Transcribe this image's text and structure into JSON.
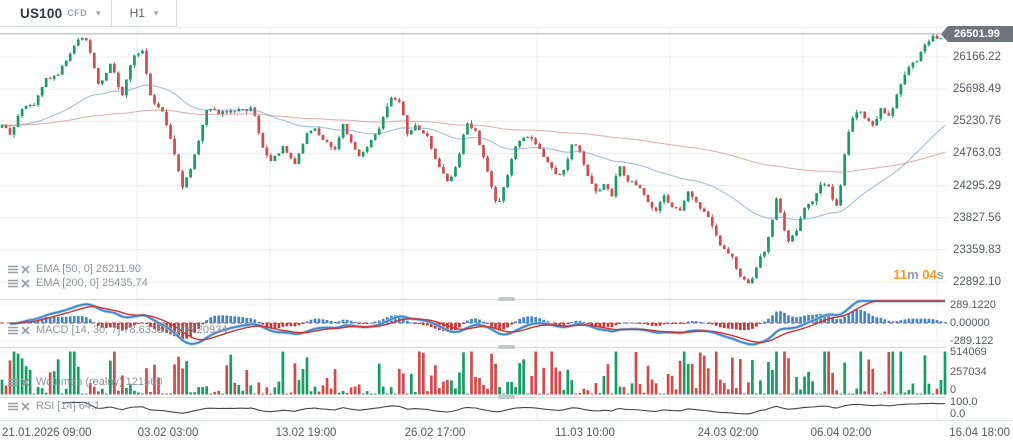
{
  "header": {
    "symbol": "US100",
    "instrument_type": "CFD",
    "timeframe": "H1"
  },
  "price_axis": {
    "current_price": "26501.99",
    "ticks": [
      "26166.22",
      "25698.49",
      "25230.76",
      "24763.03",
      "24295.29",
      "23827.56",
      "23359.83",
      "22892.10"
    ]
  },
  "countdown": {
    "minutes": "11",
    "minutes_unit": "m",
    "seconds": "04",
    "seconds_unit": "s"
  },
  "indicators": {
    "ema1": {
      "label": "EMA [50, 0]",
      "value": "26211.90"
    },
    "ema2": {
      "label": "EMA [200, 0]",
      "value": "25435.74"
    },
    "macd": {
      "label": "MACD [14, 30, 7]",
      "value": "78.63357, 106.20934",
      "axis": [
        "289.1220",
        "0.00000",
        "-289.122"
      ]
    },
    "volumes": {
      "label": "Wolumen (realny)",
      "value": "121560",
      "axis": [
        "514069",
        "257034",
        "0"
      ]
    },
    "rsi": {
      "label": "RSI [14]",
      "value": "64.1",
      "axis": [
        "100.0",
        "0.0"
      ]
    }
  },
  "time_axis": [
    "21.01.2026 09:00",
    "03.02 03:00",
    "13.02 19:00",
    "26.02 17:00",
    "11.03 10:00",
    "24.03 02:00",
    "06.04 02:00",
    "16.04 18:00"
  ],
  "chart_data": {
    "type": "candlestick",
    "symbol": "US100",
    "timeframe": "H1",
    "x_range": [
      "21.01.2026 09:00",
      "16.04 18:00"
    ],
    "y_ticks": [
      26166.22,
      25698.49,
      25230.76,
      24763.03,
      24295.29,
      23827.56,
      23359.83,
      22892.1
    ],
    "current_price": 26501.99,
    "panels": [
      "price+EMA50+EMA200",
      "MACD(14,30,7)",
      "volume",
      "RSI(14)"
    ],
    "macd_axis": [
      289.122,
      0.0,
      -289.122
    ],
    "volume_axis": [
      514069,
      257034,
      0
    ],
    "rsi_axis": [
      100.0,
      0.0
    ],
    "price_path": [
      [
        0.005,
        25150
      ],
      [
        0.011,
        25020
      ],
      [
        0.021,
        25400
      ],
      [
        0.037,
        25480
      ],
      [
        0.048,
        25830
      ],
      [
        0.061,
        25900
      ],
      [
        0.074,
        26230
      ],
      [
        0.084,
        26470
      ],
      [
        0.093,
        26380
      ],
      [
        0.105,
        25700
      ],
      [
        0.118,
        26120
      ],
      [
        0.128,
        25550
      ],
      [
        0.14,
        26150
      ],
      [
        0.151,
        26260
      ],
      [
        0.158,
        25600
      ],
      [
        0.172,
        25350
      ],
      [
        0.182,
        24900
      ],
      [
        0.192,
        24260
      ],
      [
        0.204,
        24650
      ],
      [
        0.219,
        25450
      ],
      [
        0.232,
        25350
      ],
      [
        0.245,
        25370
      ],
      [
        0.267,
        25420
      ],
      [
        0.277,
        24880
      ],
      [
        0.285,
        24650
      ],
      [
        0.299,
        24850
      ],
      [
        0.312,
        24600
      ],
      [
        0.325,
        25080
      ],
      [
        0.333,
        25120
      ],
      [
        0.343,
        24950
      ],
      [
        0.354,
        24820
      ],
      [
        0.362,
        25180
      ],
      [
        0.372,
        24900
      ],
      [
        0.38,
        24700
      ],
      [
        0.391,
        24950
      ],
      [
        0.401,
        25150
      ],
      [
        0.412,
        25600
      ],
      [
        0.422,
        25520
      ],
      [
        0.43,
        25050
      ],
      [
        0.438,
        25150
      ],
      [
        0.452,
        25020
      ],
      [
        0.461,
        24600
      ],
      [
        0.473,
        24350
      ],
      [
        0.484,
        24650
      ],
      [
        0.492,
        25230
      ],
      [
        0.502,
        25080
      ],
      [
        0.512,
        24650
      ],
      [
        0.525,
        23980
      ],
      [
        0.533,
        24300
      ],
      [
        0.546,
        24950
      ],
      [
        0.557,
        25020
      ],
      [
        0.57,
        24820
      ],
      [
        0.583,
        24520
      ],
      [
        0.593,
        24420
      ],
      [
        0.604,
        24880
      ],
      [
        0.612,
        24820
      ],
      [
        0.623,
        24350
      ],
      [
        0.63,
        24220
      ],
      [
        0.639,
        24300
      ],
      [
        0.646,
        24150
      ],
      [
        0.653,
        24600
      ],
      [
        0.662,
        24380
      ],
      [
        0.674,
        24300
      ],
      [
        0.684,
        24050
      ],
      [
        0.693,
        23900
      ],
      [
        0.7,
        24150
      ],
      [
        0.71,
        23980
      ],
      [
        0.718,
        23900
      ],
      [
        0.727,
        24200
      ],
      [
        0.736,
        24050
      ],
      [
        0.744,
        23900
      ],
      [
        0.753,
        23700
      ],
      [
        0.762,
        23400
      ],
      [
        0.773,
        23250
      ],
      [
        0.781,
        22980
      ],
      [
        0.792,
        22830
      ],
      [
        0.8,
        23180
      ],
      [
        0.809,
        23400
      ],
      [
        0.817,
        23900
      ],
      [
        0.821,
        24150
      ],
      [
        0.828,
        23650
      ],
      [
        0.833,
        23480
      ],
      [
        0.841,
        23650
      ],
      [
        0.848,
        23950
      ],
      [
        0.857,
        24050
      ],
      [
        0.866,
        24300
      ],
      [
        0.873,
        24350
      ],
      [
        0.88,
        24050
      ],
      [
        0.885,
        23980
      ],
      [
        0.89,
        24600
      ],
      [
        0.898,
        25250
      ],
      [
        0.906,
        25400
      ],
      [
        0.914,
        25280
      ],
      [
        0.923,
        25180
      ],
      [
        0.93,
        25430
      ],
      [
        0.937,
        25280
      ],
      [
        0.943,
        25450
      ],
      [
        0.95,
        25750
      ],
      [
        0.959,
        26000
      ],
      [
        0.967,
        26100
      ],
      [
        0.976,
        26300
      ],
      [
        0.984,
        26480
      ],
      [
        0.99,
        26420
      ],
      [
        0.998,
        26501.99
      ]
    ],
    "colors": {
      "up": "#169d64",
      "down": "#d14b4b",
      "ema50": "#5b87c5",
      "ema200": "#c4756a",
      "macd_line": "#3f87c9",
      "macd_halo": "#a3c8e8",
      "macd_signal": "#cc3333",
      "hist_up": "#3f87c9",
      "hist_down": "#cc3333",
      "rsi_line": "#42464a",
      "grid": "#ececec",
      "grid_faint": "#f3f3f3",
      "zero_line": "#cc3333",
      "price_line": "#a9aeb3",
      "badge_bg": "#6f757b",
      "accent_orange": "#f89b1c"
    }
  }
}
